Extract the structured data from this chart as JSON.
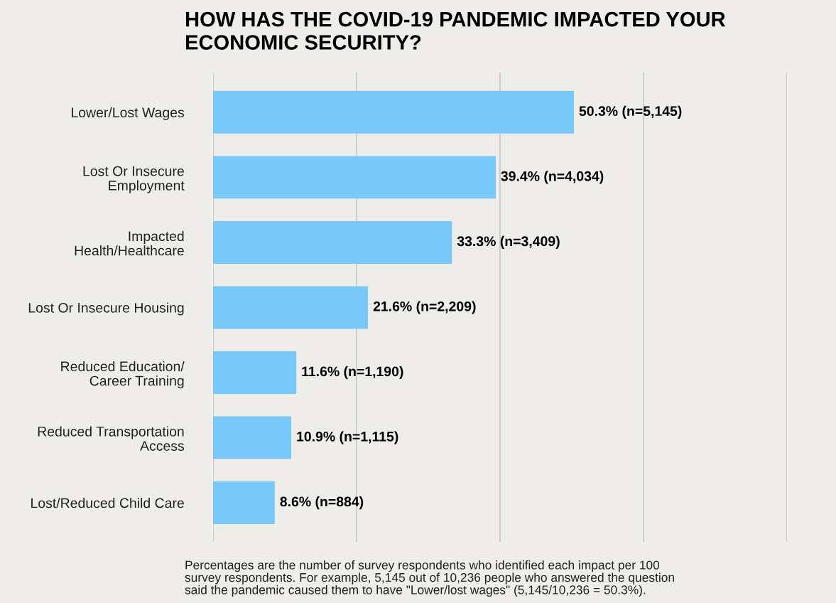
{
  "chart_data": {
    "type": "bar",
    "orientation": "horizontal",
    "title": "HOW HAS THE COVID-19 PANDEMIC IMPACTED YOUR\nECONOMIC SECURITY?",
    "categories": [
      "Lower/Lost Wages",
      "Lost Or Insecure\nEmployment",
      "Impacted\nHealth/Healthcare",
      "Lost Or Insecure Housing",
      "Reduced Education/\nCareer Training",
      "Reduced Transportation\nAccess",
      "Lost/Reduced Child Care"
    ],
    "values": [
      50.3,
      39.4,
      33.3,
      21.6,
      11.6,
      10.9,
      8.6
    ],
    "color": "#79c8fa",
    "value_labels": [
      "50.3% (n=5,145)",
      "39.4% (n=4,034)",
      "33.3% (n=3,409)",
      "21.6% (n=2,209)",
      "11.6% (n=1,190)",
      "10.9% (n=1,115)",
      "8.6% (n=884)"
    ],
    "xlim": [
      0,
      80
    ],
    "xticks": [
      {
        "value": 0,
        "label": null
      },
      {
        "value": 20,
        "label": null
      },
      {
        "value": 40,
        "label": null
      },
      {
        "value": 60,
        "label": null
      },
      {
        "value": 80,
        "label": null
      }
    ],
    "grid": "x",
    "tick_labels": "y",
    "annotations": [
      "Percentages are the number of survey respondents who identified each impact per 100\nsurvey respondents. For example, 5,145 out of 10,236 people who answered the question\nsaid the pandemic caused them to have \"Lower/lost wages\" (5,145/10,236 = 50.3%)."
    ]
  }
}
